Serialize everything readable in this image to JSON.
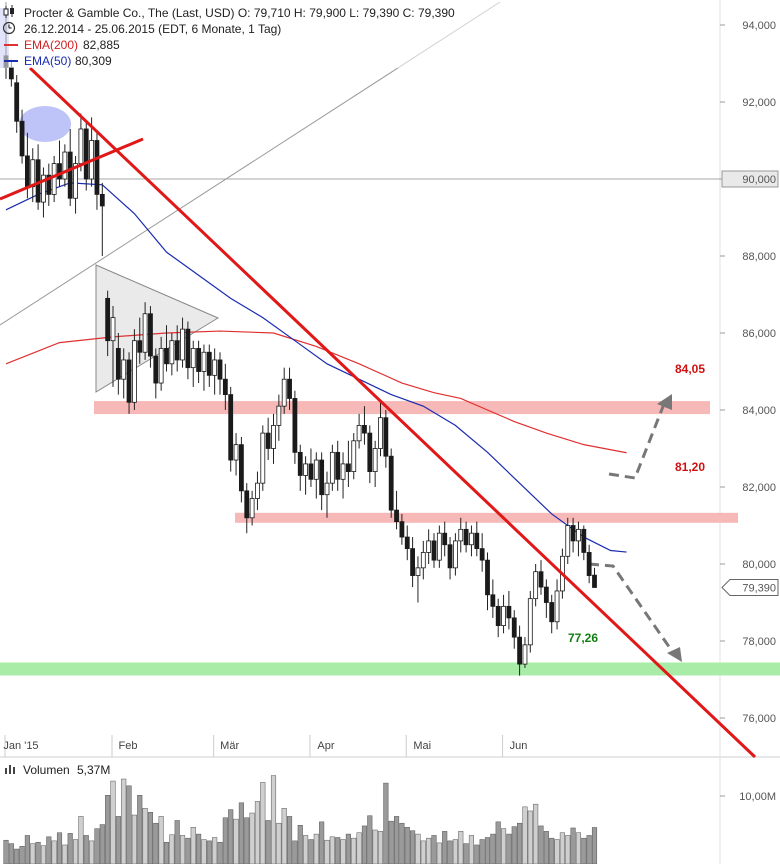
{
  "header": {
    "line1": "Procter & Gamble Co., The (Last, USD)  O: 79,710  H: 79,900  L: 79,390  C: 79,390",
    "line2": "26.12.2014 - 25.06.2015 (EDT, 6 Monate, 1 Tag)",
    "ema200_label": "EMA(200)",
    "ema200_value": "82,885",
    "ema50_label": "EMA(50)",
    "ema50_value": "80,309",
    "volume_label": "Volumen",
    "volume_value": "5,37M"
  },
  "colors": {
    "ema200": "#e03030",
    "ema50": "#1a2bb0",
    "trendline": "#e01818",
    "resistance_band": "#f7b8b8",
    "support_band": "#a8eca8",
    "resistance_label": "#d01010",
    "support_label": "#108010",
    "volume_bar": "#9a9a9a"
  },
  "chart_data": [
    {
      "type": "candlestick",
      "x_axis": {
        "ticks": [
          "Jan '15",
          "Feb",
          "Mär",
          "Apr",
          "Mai",
          "Jun"
        ]
      },
      "y_axis": {
        "ticks": [
          "94,000",
          "92,000",
          "90,000",
          "88,000",
          "86,000",
          "84,000",
          "82,000",
          "80,000",
          "78,000",
          "76,000"
        ],
        "range": [
          75.0,
          94.6
        ],
        "position": "right",
        "current_price_label": "79,390",
        "highlight_label": "90,000"
      },
      "series": [
        {
          "name": "EMA(200)",
          "x": [
            0,
            10,
            20,
            30,
            40,
            50,
            58,
            66,
            74,
            80,
            85,
            90,
            95,
            101,
            108,
            116
          ],
          "values": [
            85.2,
            85.75,
            85.9,
            86.0,
            86.05,
            86.0,
            85.65,
            85.2,
            84.7,
            84.45,
            84.3,
            84.0,
            83.7,
            83.4,
            83.1,
            82.89
          ]
        },
        {
          "name": "EMA(50)",
          "x": [
            0,
            6,
            12,
            18,
            24,
            30,
            36,
            42,
            48,
            54,
            60,
            66,
            72,
            78,
            84,
            90,
            96,
            102,
            108,
            113,
            116
          ],
          "values": [
            89.2,
            89.6,
            89.9,
            89.85,
            89.1,
            88.1,
            87.5,
            86.9,
            86.4,
            85.8,
            85.2,
            84.8,
            84.4,
            84.1,
            83.6,
            82.9,
            82.1,
            81.3,
            80.7,
            80.35,
            80.31
          ]
        }
      ],
      "candles": [
        {
          "x": 0,
          "o": 93.2,
          "h": 94.6,
          "l": 92.6,
          "c": 92.9
        },
        {
          "x": 1,
          "o": 92.9,
          "h": 93.1,
          "l": 92.4,
          "c": 92.6
        },
        {
          "x": 2,
          "o": 92.5,
          "h": 92.7,
          "l": 91.2,
          "c": 91.5
        },
        {
          "x": 3,
          "o": 91.5,
          "h": 91.8,
          "l": 90.4,
          "c": 90.6
        },
        {
          "x": 4,
          "o": 90.6,
          "h": 91.2,
          "l": 89.5,
          "c": 89.8
        },
        {
          "x": 5,
          "o": 89.8,
          "h": 90.8,
          "l": 89.4,
          "c": 90.5
        },
        {
          "x": 6,
          "o": 90.5,
          "h": 90.9,
          "l": 89.2,
          "c": 89.4
        },
        {
          "x": 7,
          "o": 89.4,
          "h": 90.3,
          "l": 89.0,
          "c": 90.1
        },
        {
          "x": 8,
          "o": 90.1,
          "h": 90.4,
          "l": 89.3,
          "c": 89.6
        },
        {
          "x": 9,
          "o": 89.6,
          "h": 90.6,
          "l": 89.4,
          "c": 90.4
        },
        {
          "x": 10,
          "o": 90.4,
          "h": 91.0,
          "l": 89.8,
          "c": 90.0
        },
        {
          "x": 11,
          "o": 90.0,
          "h": 90.9,
          "l": 89.8,
          "c": 90.7
        },
        {
          "x": 12,
          "o": 90.7,
          "h": 91.3,
          "l": 89.3,
          "c": 89.5
        },
        {
          "x": 13,
          "o": 89.5,
          "h": 90.6,
          "l": 89.1,
          "c": 90.4
        },
        {
          "x": 14,
          "o": 90.4,
          "h": 91.7,
          "l": 90.2,
          "c": 91.3
        },
        {
          "x": 15,
          "o": 91.3,
          "h": 91.5,
          "l": 89.7,
          "c": 90.0
        },
        {
          "x": 16,
          "o": 90.0,
          "h": 91.6,
          "l": 89.8,
          "c": 91.0
        },
        {
          "x": 17,
          "o": 91.0,
          "h": 91.2,
          "l": 89.2,
          "c": 89.6
        },
        {
          "x": 18,
          "o": 89.6,
          "h": 89.9,
          "l": 88.0,
          "c": 89.3
        },
        {
          "x": 19,
          "o": 86.9,
          "h": 87.1,
          "l": 85.4,
          "c": 85.8
        },
        {
          "x": 20,
          "o": 85.8,
          "h": 86.7,
          "l": 84.6,
          "c": 86.4
        },
        {
          "x": 21,
          "o": 85.6,
          "h": 86.0,
          "l": 84.4,
          "c": 84.8
        },
        {
          "x": 22,
          "o": 84.8,
          "h": 85.6,
          "l": 84.3,
          "c": 85.3
        },
        {
          "x": 23,
          "o": 85.3,
          "h": 85.5,
          "l": 83.9,
          "c": 84.2
        },
        {
          "x": 24,
          "o": 84.2,
          "h": 86.1,
          "l": 84.0,
          "c": 85.8
        },
        {
          "x": 25,
          "o": 85.8,
          "h": 86.4,
          "l": 85.2,
          "c": 85.5
        },
        {
          "x": 26,
          "o": 85.5,
          "h": 86.8,
          "l": 85.3,
          "c": 86.5
        },
        {
          "x": 27,
          "o": 86.5,
          "h": 86.7,
          "l": 85.1,
          "c": 85.4
        },
        {
          "x": 28,
          "o": 85.4,
          "h": 85.6,
          "l": 84.3,
          "c": 84.7
        },
        {
          "x": 29,
          "o": 84.7,
          "h": 85.9,
          "l": 84.5,
          "c": 85.6
        },
        {
          "x": 30,
          "o": 85.6,
          "h": 86.2,
          "l": 85.0,
          "c": 85.2
        },
        {
          "x": 31,
          "o": 85.2,
          "h": 86.0,
          "l": 84.9,
          "c": 85.8
        },
        {
          "x": 32,
          "o": 85.8,
          "h": 86.2,
          "l": 85.0,
          "c": 85.3
        },
        {
          "x": 33,
          "o": 85.3,
          "h": 86.4,
          "l": 85.1,
          "c": 86.1
        },
        {
          "x": 34,
          "o": 86.1,
          "h": 86.3,
          "l": 84.8,
          "c": 85.1
        },
        {
          "x": 35,
          "o": 85.1,
          "h": 85.8,
          "l": 84.6,
          "c": 85.6
        },
        {
          "x": 36,
          "o": 85.6,
          "h": 85.8,
          "l": 84.7,
          "c": 85.0
        },
        {
          "x": 37,
          "o": 85.0,
          "h": 85.7,
          "l": 84.5,
          "c": 85.5
        },
        {
          "x": 38,
          "o": 85.5,
          "h": 85.7,
          "l": 84.6,
          "c": 84.9
        },
        {
          "x": 39,
          "o": 84.9,
          "h": 85.6,
          "l": 84.4,
          "c": 85.3
        },
        {
          "x": 40,
          "o": 85.3,
          "h": 85.5,
          "l": 84.4,
          "c": 84.8
        },
        {
          "x": 41,
          "o": 84.8,
          "h": 85.2,
          "l": 84.0,
          "c": 84.4
        },
        {
          "x": 42,
          "o": 84.4,
          "h": 84.6,
          "l": 82.4,
          "c": 82.7
        },
        {
          "x": 43,
          "o": 82.7,
          "h": 83.4,
          "l": 82.3,
          "c": 83.1
        },
        {
          "x": 44,
          "o": 83.1,
          "h": 83.3,
          "l": 81.6,
          "c": 81.9
        },
        {
          "x": 45,
          "o": 81.9,
          "h": 82.1,
          "l": 80.8,
          "c": 81.2
        },
        {
          "x": 46,
          "o": 81.2,
          "h": 81.9,
          "l": 81.0,
          "c": 81.7
        },
        {
          "x": 47,
          "o": 81.7,
          "h": 82.4,
          "l": 81.4,
          "c": 82.1
        },
        {
          "x": 48,
          "o": 82.1,
          "h": 83.6,
          "l": 81.9,
          "c": 83.4
        },
        {
          "x": 49,
          "o": 83.4,
          "h": 83.8,
          "l": 82.7,
          "c": 83.0
        },
        {
          "x": 50,
          "o": 83.0,
          "h": 83.9,
          "l": 82.6,
          "c": 83.6
        },
        {
          "x": 51,
          "o": 83.6,
          "h": 84.4,
          "l": 83.2,
          "c": 84.1
        },
        {
          "x": 52,
          "o": 84.1,
          "h": 85.1,
          "l": 83.9,
          "c": 84.8
        },
        {
          "x": 53,
          "o": 84.8,
          "h": 85.1,
          "l": 84.0,
          "c": 84.3
        },
        {
          "x": 54,
          "o": 84.3,
          "h": 84.5,
          "l": 82.6,
          "c": 82.9
        },
        {
          "x": 55,
          "o": 82.9,
          "h": 83.1,
          "l": 81.9,
          "c": 82.3
        },
        {
          "x": 56,
          "o": 82.3,
          "h": 82.8,
          "l": 81.8,
          "c": 82.6
        },
        {
          "x": 57,
          "o": 82.6,
          "h": 83.0,
          "l": 82.0,
          "c": 82.2
        },
        {
          "x": 58,
          "o": 82.2,
          "h": 82.9,
          "l": 81.7,
          "c": 82.7
        },
        {
          "x": 59,
          "o": 82.7,
          "h": 82.9,
          "l": 81.4,
          "c": 81.8
        },
        {
          "x": 60,
          "o": 81.8,
          "h": 82.4,
          "l": 81.2,
          "c": 82.1
        },
        {
          "x": 61,
          "o": 82.1,
          "h": 83.1,
          "l": 81.9,
          "c": 82.9
        },
        {
          "x": 62,
          "o": 82.9,
          "h": 83.2,
          "l": 81.9,
          "c": 82.2
        },
        {
          "x": 63,
          "o": 82.2,
          "h": 82.9,
          "l": 81.7,
          "c": 82.6
        },
        {
          "x": 64,
          "o": 82.6,
          "h": 83.2,
          "l": 82.0,
          "c": 82.4
        },
        {
          "x": 65,
          "o": 82.4,
          "h": 83.4,
          "l": 82.2,
          "c": 83.2
        },
        {
          "x": 66,
          "o": 83.2,
          "h": 83.9,
          "l": 83.0,
          "c": 83.6
        },
        {
          "x": 67,
          "o": 83.6,
          "h": 84.1,
          "l": 83.1,
          "c": 83.4
        },
        {
          "x": 68,
          "o": 83.4,
          "h": 83.6,
          "l": 82.1,
          "c": 82.4
        },
        {
          "x": 69,
          "o": 82.4,
          "h": 83.2,
          "l": 82.0,
          "c": 83.0
        },
        {
          "x": 70,
          "o": 83.0,
          "h": 84.2,
          "l": 82.8,
          "c": 83.8
        },
        {
          "x": 71,
          "o": 83.8,
          "h": 84.0,
          "l": 82.5,
          "c": 82.8
        },
        {
          "x": 72,
          "o": 82.8,
          "h": 83.0,
          "l": 81.2,
          "c": 81.4
        },
        {
          "x": 73,
          "o": 81.4,
          "h": 81.9,
          "l": 80.9,
          "c": 81.1
        },
        {
          "x": 74,
          "o": 81.1,
          "h": 81.3,
          "l": 80.5,
          "c": 80.7
        },
        {
          "x": 75,
          "o": 80.7,
          "h": 81.0,
          "l": 80.1,
          "c": 80.4
        },
        {
          "x": 76,
          "o": 80.4,
          "h": 80.7,
          "l": 79.4,
          "c": 79.7
        },
        {
          "x": 77,
          "o": 79.7,
          "h": 80.2,
          "l": 79.0,
          "c": 79.9
        },
        {
          "x": 78,
          "o": 79.9,
          "h": 80.6,
          "l": 79.6,
          "c": 80.3
        },
        {
          "x": 79,
          "o": 80.3,
          "h": 80.9,
          "l": 80.0,
          "c": 80.6
        },
        {
          "x": 80,
          "o": 80.6,
          "h": 80.8,
          "l": 79.9,
          "c": 80.1
        },
        {
          "x": 81,
          "o": 80.1,
          "h": 81.0,
          "l": 79.9,
          "c": 80.8
        },
        {
          "x": 82,
          "o": 80.8,
          "h": 81.1,
          "l": 80.2,
          "c": 80.5
        },
        {
          "x": 83,
          "o": 80.5,
          "h": 80.7,
          "l": 79.6,
          "c": 79.9
        },
        {
          "x": 84,
          "o": 79.9,
          "h": 80.8,
          "l": 79.7,
          "c": 80.6
        },
        {
          "x": 85,
          "o": 80.6,
          "h": 81.2,
          "l": 80.3,
          "c": 80.9
        },
        {
          "x": 86,
          "o": 80.9,
          "h": 81.1,
          "l": 80.3,
          "c": 80.5
        },
        {
          "x": 87,
          "o": 80.5,
          "h": 81.0,
          "l": 80.2,
          "c": 80.8
        },
        {
          "x": 88,
          "o": 80.8,
          "h": 81.1,
          "l": 80.2,
          "c": 80.4
        },
        {
          "x": 89,
          "o": 80.4,
          "h": 80.8,
          "l": 79.8,
          "c": 80.1
        },
        {
          "x": 90,
          "o": 80.1,
          "h": 80.3,
          "l": 78.8,
          "c": 79.2
        },
        {
          "x": 91,
          "o": 79.2,
          "h": 79.6,
          "l": 78.6,
          "c": 78.9
        },
        {
          "x": 92,
          "o": 78.9,
          "h": 79.1,
          "l": 78.1,
          "c": 78.4
        },
        {
          "x": 93,
          "o": 78.4,
          "h": 79.2,
          "l": 78.2,
          "c": 78.9
        },
        {
          "x": 94,
          "o": 78.9,
          "h": 79.3,
          "l": 78.3,
          "c": 78.6
        },
        {
          "x": 95,
          "o": 78.6,
          "h": 78.8,
          "l": 77.8,
          "c": 78.1
        },
        {
          "x": 96,
          "o": 78.1,
          "h": 78.4,
          "l": 77.1,
          "c": 77.4
        },
        {
          "x": 97,
          "o": 77.4,
          "h": 78.1,
          "l": 77.3,
          "c": 77.9
        },
        {
          "x": 98,
          "o": 77.9,
          "h": 79.3,
          "l": 77.7,
          "c": 79.1
        },
        {
          "x": 99,
          "o": 79.1,
          "h": 80.0,
          "l": 78.9,
          "c": 79.8
        },
        {
          "x": 100,
          "o": 79.8,
          "h": 80.1,
          "l": 79.2,
          "c": 79.4
        },
        {
          "x": 101,
          "o": 79.4,
          "h": 79.6,
          "l": 78.6,
          "c": 79.0
        },
        {
          "x": 102,
          "o": 79.0,
          "h": 79.2,
          "l": 78.2,
          "c": 78.5
        },
        {
          "x": 103,
          "o": 78.5,
          "h": 79.6,
          "l": 78.3,
          "c": 79.3
        },
        {
          "x": 104,
          "o": 79.3,
          "h": 80.4,
          "l": 79.1,
          "c": 80.2
        },
        {
          "x": 105,
          "o": 80.2,
          "h": 81.2,
          "l": 80.0,
          "c": 81.0
        },
        {
          "x": 106,
          "o": 81.0,
          "h": 81.2,
          "l": 80.3,
          "c": 80.6
        },
        {
          "x": 107,
          "o": 80.6,
          "h": 81.1,
          "l": 80.2,
          "c": 80.9
        },
        {
          "x": 108,
          "o": 80.9,
          "h": 81.0,
          "l": 80.1,
          "c": 80.3
        },
        {
          "x": 109,
          "o": 80.3,
          "h": 80.5,
          "l": 79.5,
          "c": 79.7
        },
        {
          "x": 110,
          "o": 79.71,
          "h": 79.9,
          "l": 79.39,
          "c": 79.39
        }
      ],
      "volume": {
        "axis_label": "10,00M",
        "values": [
          3.5,
          3.0,
          2.2,
          2.6,
          4.2,
          3.0,
          3.2,
          2.7,
          4.0,
          3.4,
          4.6,
          2.8,
          4.5,
          3.6,
          7.0,
          4.2,
          3.4,
          5.2,
          5.8,
          10.1,
          12.2,
          7.0,
          12.5,
          11.5,
          7.2,
          10.1,
          8.2,
          7.6,
          6.0,
          7.0,
          3.2,
          4.3,
          6.4,
          4.2,
          3.8,
          5.4,
          4.4,
          3.6,
          3.4,
          3.9,
          3.2,
          6.8,
          8.0,
          6.6,
          9.0,
          6.8,
          7.5,
          9.2,
          12.0,
          6.4,
          13.0,
          6.0,
          8.2,
          7.0,
          3.4,
          5.7,
          4.2,
          3.6,
          4.4,
          6.2,
          3.5,
          4.0,
          3.9,
          3.6,
          4.4,
          3.8,
          4.6,
          5.6,
          7.1,
          5.0,
          4.8,
          11.9,
          6.3,
          7.0,
          6.0,
          5.4,
          4.9,
          4.4,
          3.4,
          3.8,
          4.2,
          3.1,
          4.8,
          3.4,
          3.6,
          4.8,
          3.0,
          4.2,
          2.8,
          3.6,
          3.9,
          4.4,
          6.2,
          5.2,
          4.4,
          5.5,
          6.0,
          8.4,
          7.8,
          8.8,
          5.6,
          4.8,
          3.8,
          3.6,
          4.6,
          4.2,
          5.3,
          4.6,
          3.8,
          4.2,
          5.37
        ]
      }
    }
  ],
  "annotations": {
    "resistance_upper_label": "84,05",
    "resistance_lower_label": "81,20",
    "support_label": "77,26"
  }
}
